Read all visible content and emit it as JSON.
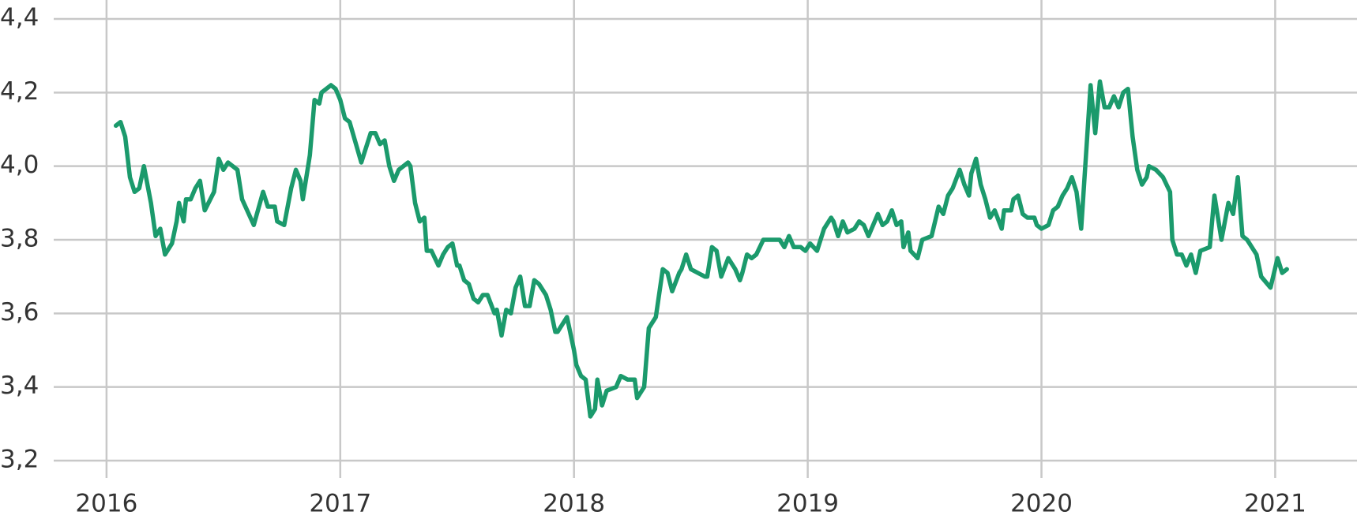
{
  "chart_data": {
    "type": "line",
    "x": [
      2016.04,
      2016.06,
      2016.08,
      2016.1,
      2016.12,
      2016.14,
      2016.16,
      2016.19,
      2016.21,
      2016.23,
      2016.25,
      2016.28,
      2016.3,
      2016.31,
      2016.33,
      2016.34,
      2016.36,
      2016.38,
      2016.4,
      2016.42,
      2016.46,
      2016.48,
      2016.5,
      2016.52,
      2016.56,
      2016.58,
      2016.63,
      2016.67,
      2016.69,
      2016.72,
      2016.73,
      2016.76,
      2016.79,
      2016.81,
      2016.83,
      2016.84,
      2016.87,
      2016.89,
      2016.91,
      2016.92,
      2016.96,
      2016.98,
      2017.0,
      2017.02,
      2017.04,
      2017.09,
      2017.13,
      2017.15,
      2017.17,
      2017.19,
      2017.21,
      2017.23,
      2017.25,
      2017.27,
      2017.29,
      2017.3,
      2017.32,
      2017.34,
      2017.36,
      2017.37,
      2017.39,
      2017.42,
      2017.44,
      2017.46,
      2017.48,
      2017.5,
      2017.51,
      2017.53,
      2017.55,
      2017.57,
      2017.59,
      2017.61,
      2017.63,
      2017.66,
      2017.67,
      2017.69,
      2017.71,
      2017.73,
      2017.75,
      2017.77,
      2017.79,
      2017.81,
      2017.83,
      2017.85,
      2017.88,
      2017.9,
      2017.92,
      2017.93,
      2017.95,
      2017.97,
      2018.0,
      2018.01,
      2018.03,
      2018.05,
      2018.07,
      2018.09,
      2018.1,
      2018.12,
      2018.14,
      2018.18,
      2018.2,
      2018.23,
      2018.26,
      2018.27,
      2018.3,
      2018.32,
      2018.35,
      2018.38,
      2018.4,
      2018.42,
      2018.45,
      2018.46,
      2018.48,
      2018.5,
      2018.53,
      2018.56,
      2018.57,
      2018.59,
      2018.61,
      2018.63,
      2018.66,
      2018.69,
      2018.71,
      2018.72,
      2018.74,
      2018.76,
      2018.78,
      2018.81,
      2018.83,
      2018.85,
      2018.86,
      2018.88,
      2018.9,
      2018.92,
      2018.94,
      2018.97,
      2018.99,
      2019.01,
      2019.04,
      2019.07,
      2019.1,
      2019.11,
      2019.13,
      2019.15,
      2019.17,
      2019.2,
      2019.22,
      2019.24,
      2019.26,
      2019.3,
      2019.32,
      2019.34,
      2019.36,
      2019.38,
      2019.4,
      2019.41,
      2019.43,
      2019.44,
      2019.47,
      2019.49,
      2019.53,
      2019.56,
      2019.58,
      2019.6,
      2019.62,
      2019.65,
      2019.67,
      2019.69,
      2019.7,
      2019.72,
      2019.74,
      2019.76,
      2019.78,
      2019.8,
      2019.83,
      2019.84,
      2019.87,
      2019.88,
      2019.9,
      2019.92,
      2019.94,
      2019.97,
      2019.98,
      2020.0,
      2020.03,
      2020.05,
      2020.07,
      2020.09,
      2020.11,
      2020.13,
      2020.15,
      2020.17,
      2020.21,
      2020.23,
      2020.25,
      2020.27,
      2020.29,
      2020.31,
      2020.33,
      2020.35,
      2020.37,
      2020.39,
      2020.41,
      2020.43,
      2020.45,
      2020.46,
      2020.49,
      2020.52,
      2020.55,
      2020.56,
      2020.58,
      2020.6,
      2020.62,
      2020.64,
      2020.66,
      2020.68,
      2020.72,
      2020.74,
      2020.77,
      2020.8,
      2020.82,
      2020.84,
      2020.86,
      2020.88,
      2020.92,
      2020.94,
      2020.98,
      2021.01,
      2021.03,
      2021.05
    ],
    "series": [
      {
        "color": "#1b9a6c",
        "values": [
          4.11,
          4.12,
          4.08,
          3.97,
          3.93,
          3.94,
          4.0,
          3.9,
          3.81,
          3.83,
          3.76,
          3.79,
          3.85,
          3.9,
          3.85,
          3.91,
          3.91,
          3.94,
          3.96,
          3.88,
          3.93,
          4.02,
          3.99,
          4.01,
          3.99,
          3.91,
          3.84,
          3.93,
          3.89,
          3.89,
          3.85,
          3.84,
          3.94,
          3.99,
          3.96,
          3.91,
          4.03,
          4.18,
          4.17,
          4.2,
          4.22,
          4.21,
          4.18,
          4.13,
          4.12,
          4.01,
          4.09,
          4.09,
          4.06,
          4.07,
          4.0,
          3.96,
          3.99,
          4.0,
          4.01,
          4.0,
          3.9,
          3.85,
          3.86,
          3.77,
          3.77,
          3.73,
          3.76,
          3.78,
          3.79,
          3.73,
          3.73,
          3.69,
          3.68,
          3.64,
          3.63,
          3.65,
          3.65,
          3.6,
          3.61,
          3.54,
          3.61,
          3.6,
          3.67,
          3.7,
          3.62,
          3.62,
          3.69,
          3.68,
          3.65,
          3.61,
          3.55,
          3.55,
          3.57,
          3.59,
          3.5,
          3.46,
          3.43,
          3.42,
          3.32,
          3.34,
          3.42,
          3.35,
          3.39,
          3.4,
          3.43,
          3.42,
          3.42,
          3.37,
          3.4,
          3.56,
          3.59,
          3.72,
          3.71,
          3.66,
          3.71,
          3.72,
          3.76,
          3.72,
          3.71,
          3.7,
          3.7,
          3.78,
          3.77,
          3.7,
          3.75,
          3.72,
          3.69,
          3.71,
          3.76,
          3.75,
          3.76,
          3.8,
          3.8,
          3.8,
          3.8,
          3.8,
          3.78,
          3.81,
          3.78,
          3.78,
          3.77,
          3.79,
          3.77,
          3.83,
          3.86,
          3.85,
          3.81,
          3.85,
          3.82,
          3.83,
          3.85,
          3.84,
          3.81,
          3.87,
          3.84,
          3.85,
          3.88,
          3.84,
          3.85,
          3.78,
          3.82,
          3.77,
          3.75,
          3.8,
          3.81,
          3.89,
          3.87,
          3.92,
          3.94,
          3.99,
          3.95,
          3.92,
          3.98,
          4.02,
          3.95,
          3.91,
          3.86,
          3.88,
          3.83,
          3.88,
          3.88,
          3.91,
          3.92,
          3.87,
          3.86,
          3.86,
          3.84,
          3.83,
          3.84,
          3.88,
          3.89,
          3.92,
          3.94,
          3.97,
          3.93,
          3.83,
          4.22,
          4.09,
          4.23,
          4.16,
          4.16,
          4.19,
          4.16,
          4.2,
          4.21,
          4.08,
          3.99,
          3.95,
          3.97,
          4.0,
          3.99,
          3.97,
          3.93,
          3.8,
          3.76,
          3.76,
          3.73,
          3.76,
          3.71,
          3.77,
          3.78,
          3.92,
          3.8,
          3.9,
          3.87,
          3.97,
          3.81,
          3.8,
          3.76,
          3.7,
          3.67,
          3.75,
          3.71,
          3.72
        ]
      }
    ],
    "xlim": [
      2015.774,
      2021.35
    ],
    "xticks": [
      2016,
      2017,
      2018,
      2019,
      2020,
      2021
    ],
    "ylim": [
      3.2,
      4.4
    ],
    "yticks": [
      {
        "value": 3.2,
        "label": "3,2"
      },
      {
        "value": 3.4,
        "label": "3,4"
      },
      {
        "value": 3.6,
        "label": "3,6"
      },
      {
        "value": 3.8,
        "label": "3,8"
      },
      {
        "value": 4.0,
        "label": "4,0"
      },
      {
        "value": 4.2,
        "label": "4,2"
      },
      {
        "value": 4.4,
        "label": "4,4"
      }
    ],
    "grid": true
  }
}
